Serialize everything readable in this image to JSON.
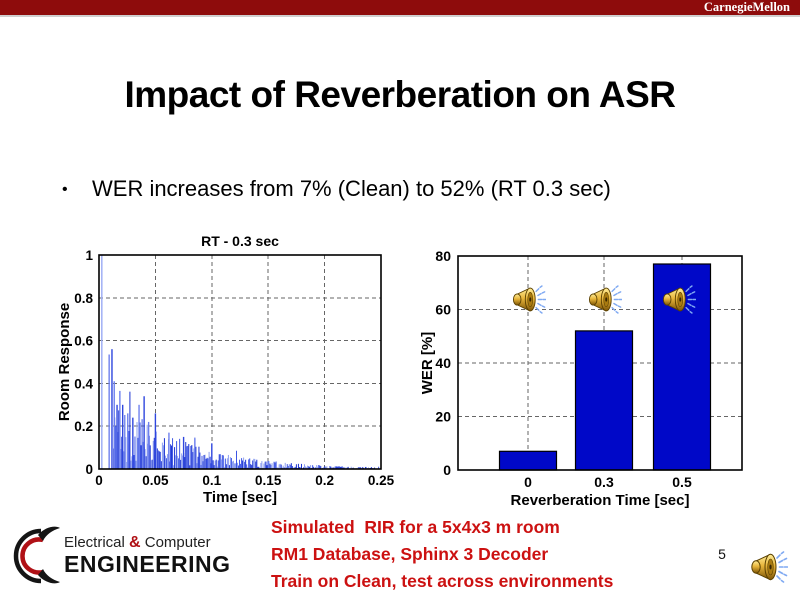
{
  "header": {
    "brand": "CarnegieMellon",
    "bar_color": "#8E0C0C"
  },
  "title": "Impact of Reverberation on ASR",
  "bullet": {
    "marker": "•",
    "text": "WER increases from 7% (Clean) to 52% (RT 0.3 sec)"
  },
  "chart_data": [
    {
      "type": "stem",
      "title": "RT - 0.3 sec",
      "xlabel": "Time [sec]",
      "ylabel": "Room Response",
      "xlim": [
        0,
        0.25
      ],
      "ylim": [
        0,
        1
      ],
      "xticks": [
        "0",
        "0.05",
        "0.1",
        "0.15",
        "0.2",
        "0.25"
      ],
      "xtick_values": [
        0,
        0.05,
        0.1,
        0.15,
        0.2,
        0.25
      ],
      "yticks": [
        "0",
        "0.2",
        "0.4",
        "0.6",
        "0.8",
        "1"
      ],
      "ytick_values": [
        0,
        0.2,
        0.4,
        0.6,
        0.8,
        1
      ],
      "grid": "dashed",
      "early_reflections": [
        {
          "t": 0.0025,
          "a": 1.0
        },
        {
          "t": 0.009,
          "a": 0.535
        },
        {
          "t": 0.0115,
          "a": 0.56
        },
        {
          "t": 0.0135,
          "a": 0.41
        },
        {
          "t": 0.016,
          "a": 0.3
        },
        {
          "t": 0.0185,
          "a": 0.365
        },
        {
          "t": 0.021,
          "a": 0.3
        },
        {
          "t": 0.0255,
          "a": 0.26
        },
        {
          "t": 0.03,
          "a": 0.24
        },
        {
          "t": 0.0355,
          "a": 0.3
        },
        {
          "t": 0.04,
          "a": 0.34
        },
        {
          "t": 0.044,
          "a": 0.22
        },
        {
          "t": 0.05,
          "a": 0.26
        },
        {
          "t": 0.062,
          "a": 0.17
        },
        {
          "t": 0.075,
          "a": 0.15
        },
        {
          "t": 0.085,
          "a": 0.14
        },
        {
          "t": 0.1,
          "a": 0.12
        }
      ],
      "diffuse_decay": {
        "t_start": 0.013,
        "tau": 0.062,
        "base_amplitude": 0.36,
        "t_end": 0.25,
        "step": 0.0009,
        "seed": 1337
      }
    },
    {
      "type": "bar",
      "categories": [
        "0",
        "0.3",
        "0.5"
      ],
      "values": [
        7,
        52,
        77
      ],
      "xlabel": "Reverberation Time [sec]",
      "ylabel": "WER [%]",
      "ylim": [
        0,
        80
      ],
      "yticks": [
        0,
        20,
        40,
        60,
        80
      ],
      "bar_color": "#0008C8",
      "grid": "dashed",
      "legend": null
    }
  ],
  "footer": {
    "logo": {
      "line1_a": "Electrical",
      "ampersand": "&",
      "line1_b": " Computer",
      "line2": "ENGINEERING",
      "accent_color": "#b01116"
    },
    "notes": [
      "Simulated  RIR for a 5x4x3 m room",
      "RM1 Database, Sphinx 3 Decoder",
      "Train on Clean, test across environments"
    ],
    "page_number": "5"
  },
  "icons": {
    "speaker-icon": "gold loudspeaker horn with blue dashed sound waves",
    "logo-mark-icon": "black and red circular ECE swoosh mark"
  },
  "colors": {
    "header_bar": "#8E0C0C",
    "note_red": "#CC1111",
    "bar_fill": "#0008C8",
    "stem_blue": "#2e46de"
  }
}
